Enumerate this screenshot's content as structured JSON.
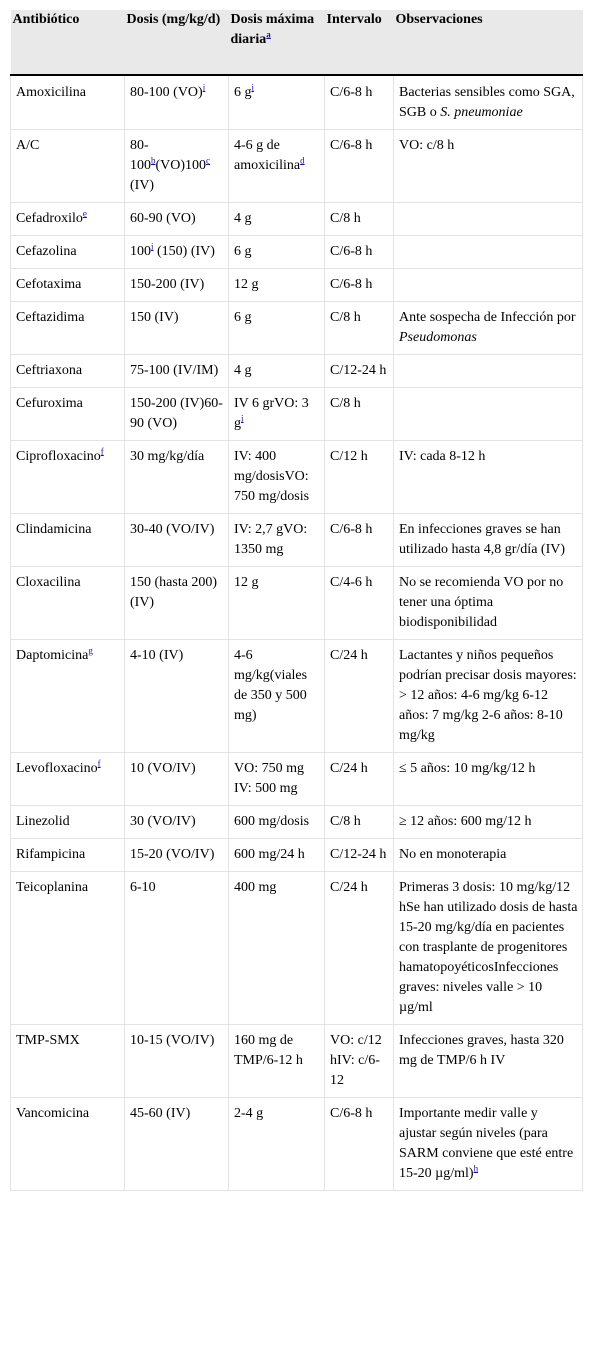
{
  "table": {
    "headers": [
      {
        "text": "Antibiótico"
      },
      {
        "text": "Dosis (mg/kg/d)"
      },
      {
        "text": "Dosis máxima diaria",
        "sup": "a"
      },
      {
        "text": "Intervalo"
      },
      {
        "text": "Observaciones"
      }
    ],
    "rows": [
      [
        [
          {
            "t": "Amoxicilina"
          }
        ],
        [
          {
            "t": "80-100 (VO)"
          },
          {
            "sup": "i"
          }
        ],
        [
          {
            "t": "6 g"
          },
          {
            "sup": "i"
          }
        ],
        [
          {
            "t": "C/6-8 h"
          }
        ],
        [
          {
            "t": "Bacterias sensibles como SGA, SGB o "
          },
          {
            "i": "S. pneumoniae"
          }
        ]
      ],
      [
        [
          {
            "t": "A/C"
          }
        ],
        [
          {
            "t": "80-100"
          },
          {
            "sup": "b"
          },
          {
            "t": "(VO)100"
          },
          {
            "sup": "c"
          },
          {
            "t": " (IV)"
          }
        ],
        [
          {
            "t": "4-6 g de amoxicilina"
          },
          {
            "sup": "d"
          }
        ],
        [
          {
            "t": "C/6-8 h"
          }
        ],
        [
          {
            "t": "VO: c/8 h"
          }
        ]
      ],
      [
        [
          {
            "t": "Cefadroxilo"
          },
          {
            "sup": "e"
          }
        ],
        [
          {
            "t": "60-90 (VO)"
          }
        ],
        [
          {
            "t": "4 g"
          }
        ],
        [
          {
            "t": "C/8 h"
          }
        ],
        []
      ],
      [
        [
          {
            "t": "Cefazolina"
          }
        ],
        [
          {
            "t": "100"
          },
          {
            "sup": "i"
          },
          {
            "t": " (150) (IV)"
          }
        ],
        [
          {
            "t": "6 g"
          }
        ],
        [
          {
            "t": "C/6-8 h"
          }
        ],
        []
      ],
      [
        [
          {
            "t": "Cefotaxima"
          }
        ],
        [
          {
            "t": "150-200 (IV)"
          }
        ],
        [
          {
            "t": "12 g"
          }
        ],
        [
          {
            "t": "C/6-8 h"
          }
        ],
        []
      ],
      [
        [
          {
            "t": "Ceftazidima"
          }
        ],
        [
          {
            "t": "150 (IV)"
          }
        ],
        [
          {
            "t": "6 g"
          }
        ],
        [
          {
            "t": "C/8 h"
          }
        ],
        [
          {
            "t": "Ante sospecha de Infección por "
          },
          {
            "i": "Pseudomonas"
          }
        ]
      ],
      [
        [
          {
            "t": "Ceftriaxona"
          }
        ],
        [
          {
            "t": "75-100 (IV/IM)"
          }
        ],
        [
          {
            "t": "4 g"
          }
        ],
        [
          {
            "t": "C/12-24 h"
          }
        ],
        []
      ],
      [
        [
          {
            "t": "Cefuroxima"
          }
        ],
        [
          {
            "t": "150-200 (IV)60-90 (VO)"
          }
        ],
        [
          {
            "t": "IV 6 grVO: 3 g"
          },
          {
            "sup": "i"
          }
        ],
        [
          {
            "t": "C/8 h"
          }
        ],
        []
      ],
      [
        [
          {
            "t": "Ciprofloxacino"
          },
          {
            "sup": "f"
          }
        ],
        [
          {
            "t": "30 mg/kg/día"
          }
        ],
        [
          {
            "t": "IV: 400 mg/dosisVO: 750 mg/dosis"
          }
        ],
        [
          {
            "t": "C/12 h"
          }
        ],
        [
          {
            "t": "IV: cada 8-12 h"
          }
        ]
      ],
      [
        [
          {
            "t": "Clindamicina"
          }
        ],
        [
          {
            "t": "30-40 (VO/IV)"
          }
        ],
        [
          {
            "t": "IV: 2,7 gVO: 1350 mg"
          }
        ],
        [
          {
            "t": "C/6-8 h"
          }
        ],
        [
          {
            "t": "En infecciones graves se han utilizado hasta 4,8 gr/día (IV)"
          }
        ]
      ],
      [
        [
          {
            "t": "Cloxacilina"
          }
        ],
        [
          {
            "t": "150 (hasta 200) (IV)"
          }
        ],
        [
          {
            "t": "12 g"
          }
        ],
        [
          {
            "t": "C/4-6 h"
          }
        ],
        [
          {
            "t": "No se recomienda VO por no tener una óptima biodisponibilidad"
          }
        ]
      ],
      [
        [
          {
            "t": "Daptomicina"
          },
          {
            "sup": "g"
          }
        ],
        [
          {
            "t": "4-10 (IV)"
          }
        ],
        [
          {
            "t": "4-6 mg/kg(viales de 350 y 500 mg)"
          }
        ],
        [
          {
            "t": "C/24 h"
          }
        ],
        [
          {
            "t": "Lactantes y niños pequeños podrían precisar dosis mayores: > 12 años: 4-6 mg/kg 6-12 años: 7 mg/kg 2-6 años: 8-10 mg/kg"
          }
        ]
      ],
      [
        [
          {
            "t": "Levofloxacino"
          },
          {
            "sup": "f"
          }
        ],
        [
          {
            "t": "10 (VO/IV)"
          }
        ],
        [
          {
            "t": "VO: 750 mg IV: 500 mg"
          }
        ],
        [
          {
            "t": "C/24 h"
          }
        ],
        [
          {
            "t": "≤ 5 años: 10 mg/kg/12 h"
          }
        ]
      ],
      [
        [
          {
            "t": "Linezolid"
          }
        ],
        [
          {
            "t": "30 (VO/IV)"
          }
        ],
        [
          {
            "t": "600 mg/dosis"
          }
        ],
        [
          {
            "t": "C/8 h"
          }
        ],
        [
          {
            "t": "≥ 12 años: 600 mg/12 h"
          }
        ]
      ],
      [
        [
          {
            "t": "Rifampicina"
          }
        ],
        [
          {
            "t": "15-20 (VO/IV)"
          }
        ],
        [
          {
            "t": "600 mg/24 h"
          }
        ],
        [
          {
            "t": "C/12-24 h"
          }
        ],
        [
          {
            "t": "No en monoterapia"
          }
        ]
      ],
      [
        [
          {
            "t": "Teicoplanina"
          }
        ],
        [
          {
            "t": "6-10"
          }
        ],
        [
          {
            "t": "400 mg"
          }
        ],
        [
          {
            "t": "C/24 h"
          }
        ],
        [
          {
            "t": "Primeras 3 dosis: 10 mg/kg/12 hSe han utilizado dosis de hasta 15-20 mg/kg/día en pacientes con trasplante de progenitores hamatopoyéticosInfecciones graves: niveles valle > 10 µg/ml"
          }
        ]
      ],
      [
        [
          {
            "t": "TMP-SMX"
          }
        ],
        [
          {
            "t": "10-15 (VO/IV)"
          }
        ],
        [
          {
            "t": "160 mg de TMP/6-12 h"
          }
        ],
        [
          {
            "t": "VO: c/12 hIV: c/6-12"
          }
        ],
        [
          {
            "t": "Infecciones graves, hasta 320 mg de TMP/6 h IV"
          }
        ]
      ],
      [
        [
          {
            "t": "Vancomicina"
          }
        ],
        [
          {
            "t": "45-60 (IV)"
          }
        ],
        [
          {
            "t": "2-4 g"
          }
        ],
        [
          {
            "t": "C/6-8 h"
          }
        ],
        [
          {
            "t": "Importante medir valle y ajustar según niveles (para SARM conviene que esté entre 15-20 µg/ml)"
          },
          {
            "sup": "h"
          }
        ]
      ]
    ]
  }
}
